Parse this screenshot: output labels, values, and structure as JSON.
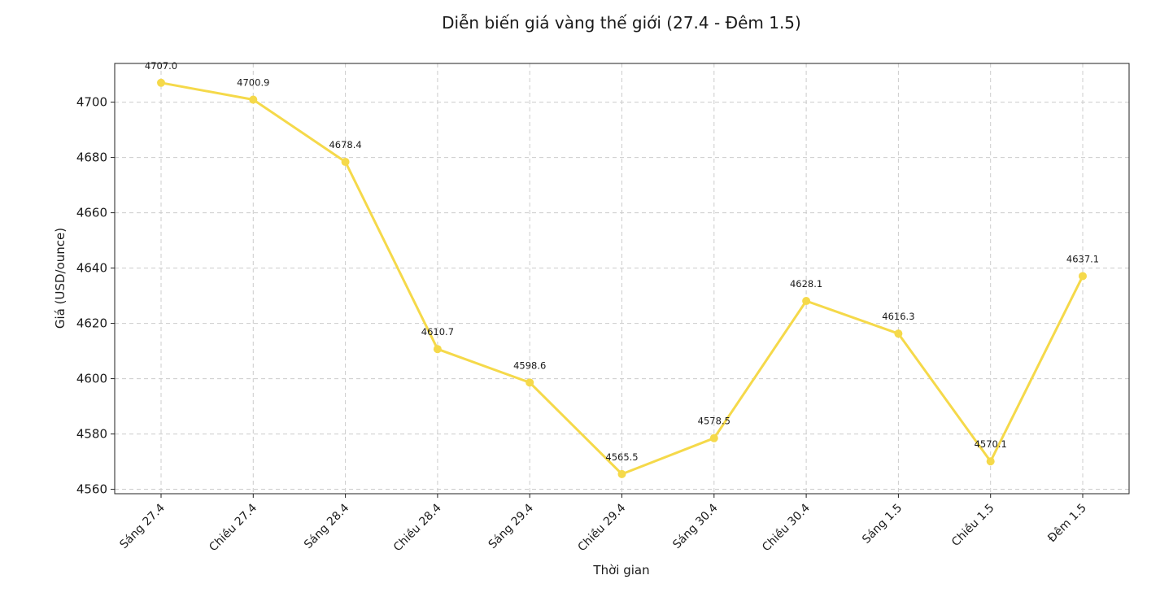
{
  "chart_data": {
    "type": "line",
    "title": "Diễn biến giá vàng thế giới (27.4 - Đêm 1.5)",
    "xlabel": "Thời gian",
    "ylabel": "Giá (USD/ounce)",
    "categories": [
      "Sáng 27.4",
      "Chiều 27.4",
      "Sáng 28.4",
      "Chiều 28.4",
      "Sáng 29.4",
      "Chiều 29.4",
      "Sáng 30.4",
      "Chiều 30.4",
      "Sáng 1.5",
      "Chiều 1.5",
      "Đêm 1.5"
    ],
    "series": [
      {
        "values": [
          4707.0,
          4700.9,
          4678.4,
          4610.7,
          4598.6,
          4565.5,
          4578.5,
          4628.1,
          4616.3,
          4570.1,
          4637.1
        ],
        "data_labels": [
          "4707.0",
          "4700.9",
          "4678.4",
          "4610.7",
          "4598.6",
          "4565.5",
          "4578.5",
          "4628.1",
          "4616.3",
          "4570.1",
          "4637.1"
        ],
        "color": "#f5d94a"
      }
    ],
    "yticks": [
      4560,
      4580,
      4600,
      4620,
      4640,
      4660,
      4680,
      4700
    ],
    "ylim": [
      4558.4,
      4714.0
    ],
    "grid": true,
    "legend": "none"
  }
}
